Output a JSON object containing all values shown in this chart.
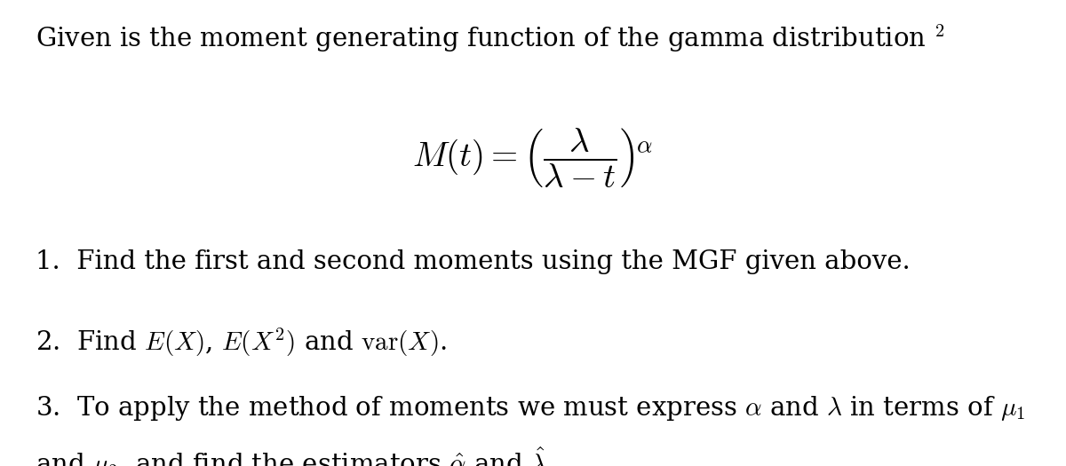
{
  "bg_color": "#ffffff",
  "font_size_title": 21,
  "font_size_formula": 28,
  "font_size_items": 21
}
